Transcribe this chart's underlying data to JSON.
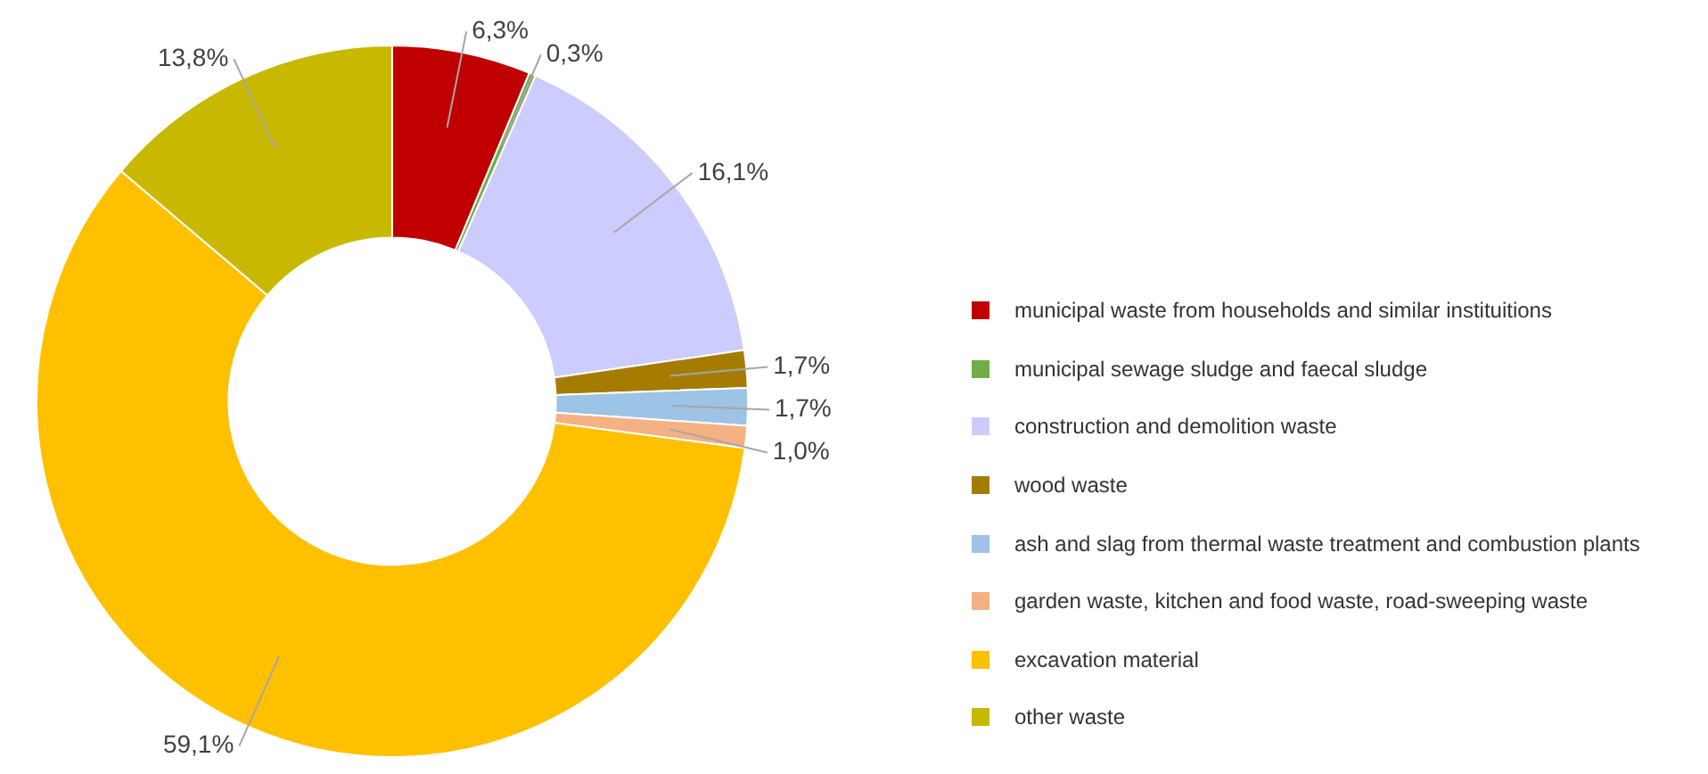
{
  "chart_data": {
    "type": "donut",
    "categories": [
      "municipal waste from households and similar instituitions",
      "municipal sewage sludge and faecal sludge",
      "construction and demolition waste",
      "wood waste",
      "ash and slag from thermal waste treatment and combustion plants",
      "garden waste, kitchen and food waste, road-sweeping waste",
      "excavation material",
      "other waste"
    ],
    "values": [
      6.3,
      0.3,
      16.1,
      1.7,
      1.7,
      1.0,
      59.1,
      13.8
    ],
    "colors": [
      "#c00000",
      "#70ad47",
      "#ccccff",
      "#a67c00",
      "#9dc3e6",
      "#f4b183",
      "#ffc000",
      "#c9b800"
    ],
    "value_labels": [
      "6,3%",
      "0,3%",
      "16,1%",
      "1,7%",
      "1,7%",
      "1,0%",
      "59,1%",
      "13,8%"
    ],
    "legend": "right"
  }
}
